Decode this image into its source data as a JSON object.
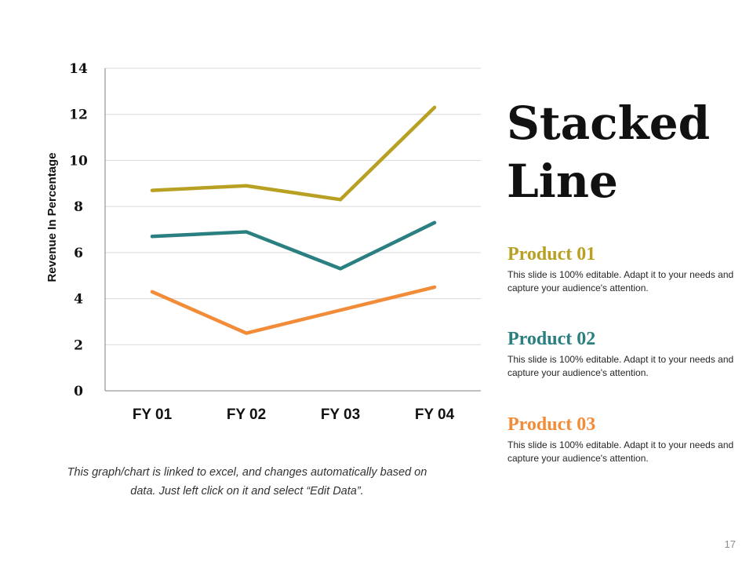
{
  "slide": {
    "title": "Stacked Line",
    "page_number": "17",
    "note": "This graph/chart is linked to excel, and changes automatically based on data. Just left click on it and select “Edit Data”."
  },
  "products": [
    {
      "name": "Product 01",
      "color": "#B8A022",
      "description": "This slide is 100% editable. Adapt it to your needs and capture your audience's attention."
    },
    {
      "name": "Product 02",
      "color": "#2A7F80",
      "description": "This slide is 100% editable. Adapt it to your needs and capture your audience's attention."
    },
    {
      "name": "Product 03",
      "color": "#F28C38",
      "description": "This slide is 100% editable. Adapt it to your needs and capture your audience's attention."
    }
  ],
  "chart_data": {
    "type": "line",
    "categories": [
      "FY 01",
      "FY 02",
      "FY 03",
      "FY 04"
    ],
    "series": [
      {
        "name": "Product 01",
        "values": [
          8.7,
          8.9,
          8.3,
          12.3
        ],
        "color": "#B8A022"
      },
      {
        "name": "Product 02",
        "values": [
          6.7,
          6.9,
          5.3,
          7.3
        ],
        "color": "#2A7F80"
      },
      {
        "name": "Product 03",
        "values": [
          4.3,
          2.5,
          3.5,
          4.5
        ],
        "color": "#F28C38"
      }
    ],
    "ylabel": "Revenue In Percentage",
    "ylim": [
      0,
      14
    ],
    "yticks": [
      "0",
      "2",
      "4",
      "6",
      "8",
      "10",
      "12",
      "14"
    ],
    "grid": true
  }
}
